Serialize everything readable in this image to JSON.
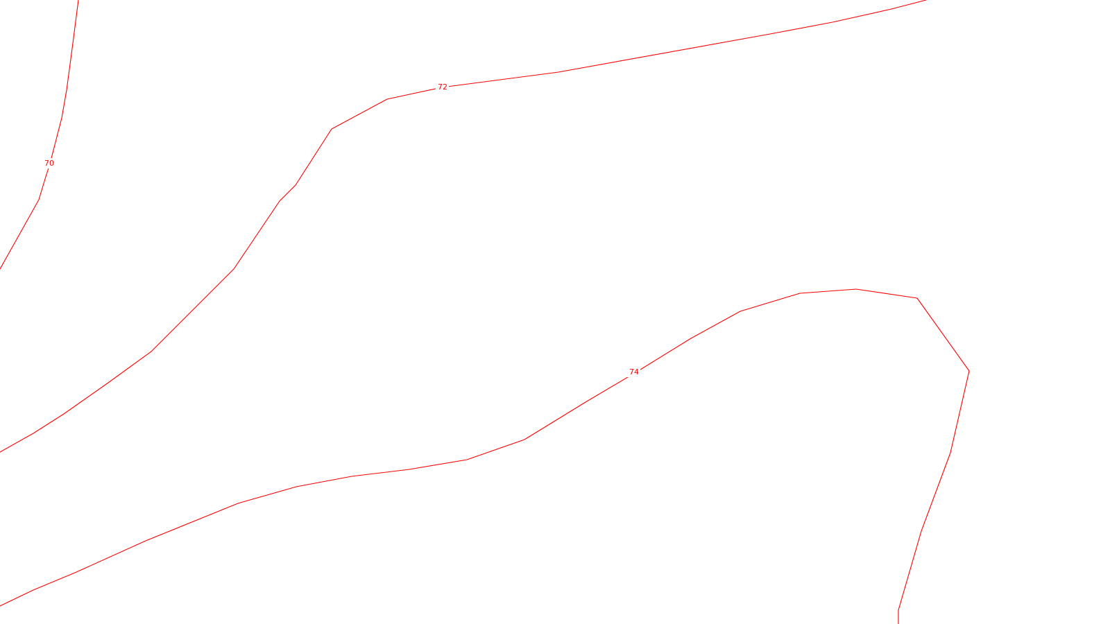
{
  "map": {
    "background_color": "#ffffff",
    "contour_color": "#ff0000",
    "contours": [
      {
        "elevation": 70,
        "label": "70"
      },
      {
        "elevation": 72,
        "label": "72"
      },
      {
        "elevation": 74,
        "label": "74"
      }
    ]
  }
}
